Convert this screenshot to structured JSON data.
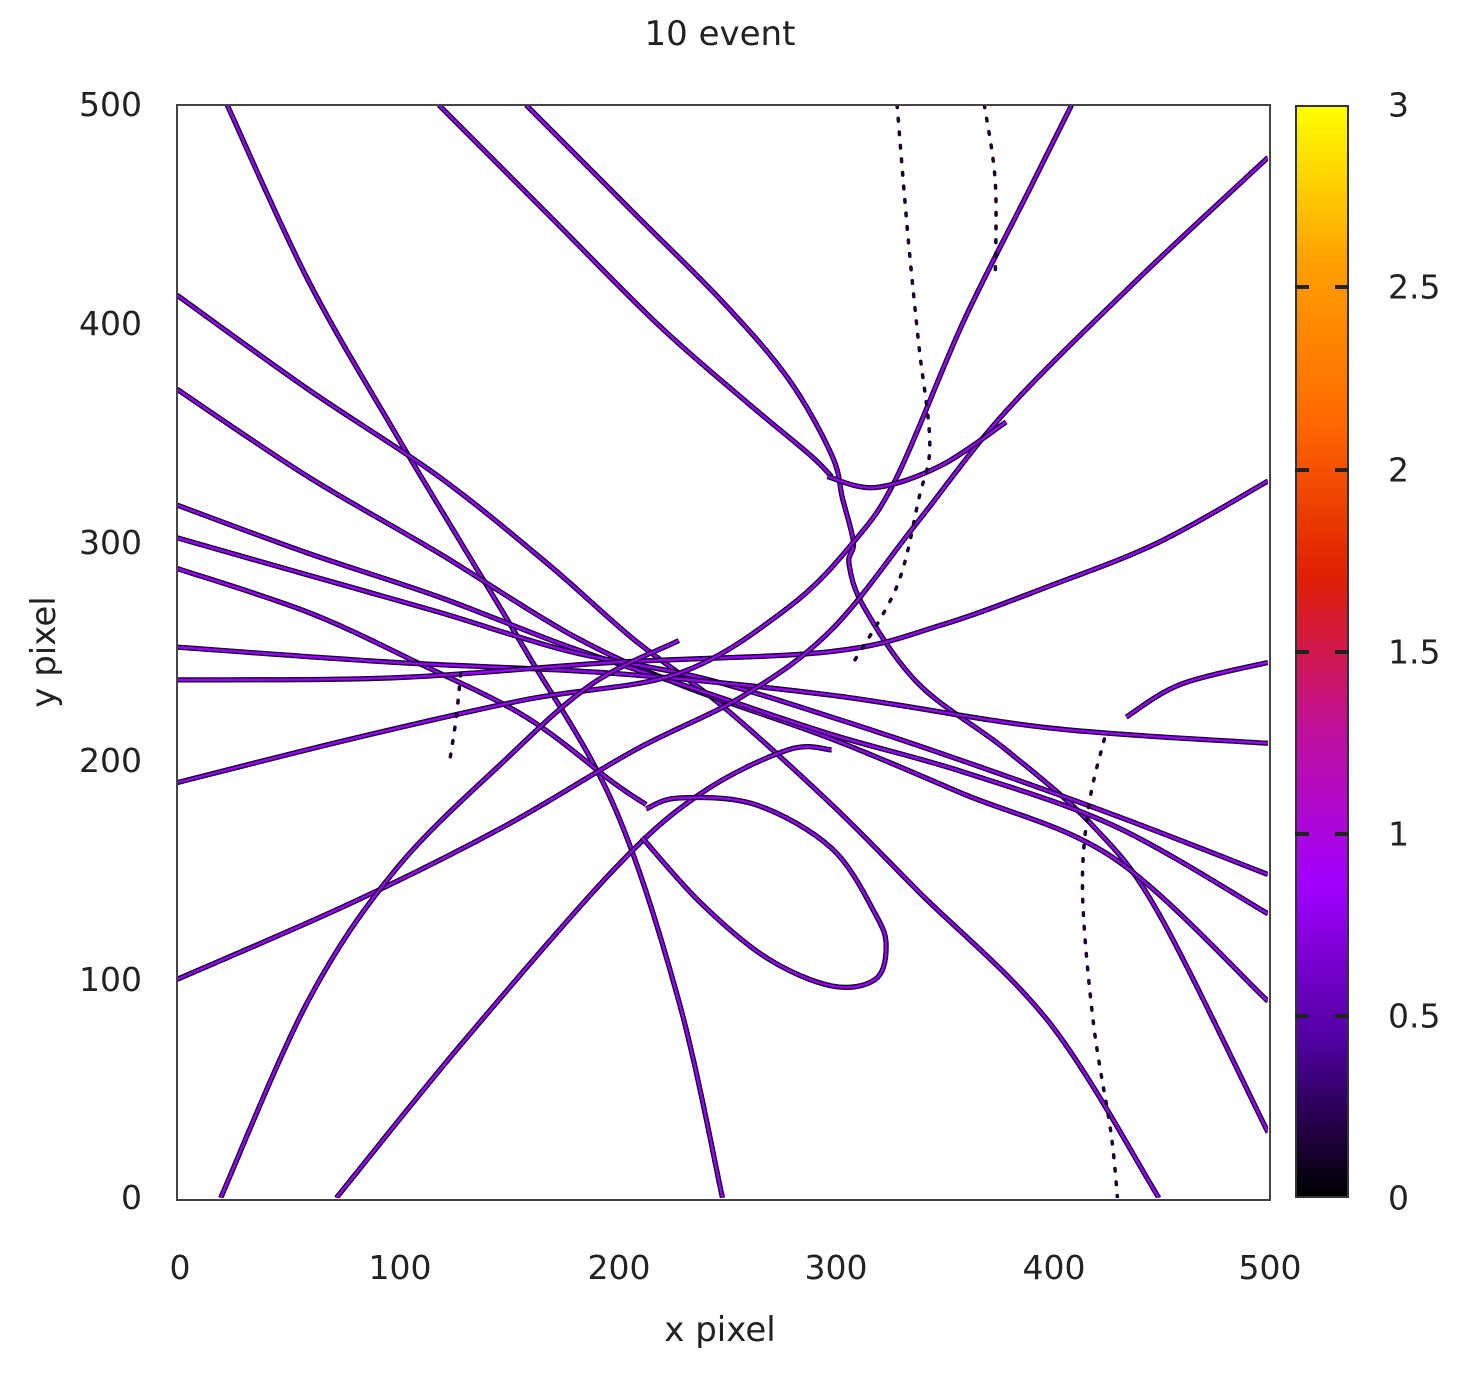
{
  "chart_data": {
    "type": "scatter",
    "title": "10 event",
    "xlabel": "x pixel",
    "ylabel": "y pixel",
    "xlim": [
      0,
      500
    ],
    "ylim": [
      0,
      500
    ],
    "x_ticks": [
      "0",
      "100",
      "200",
      "300",
      "400",
      "500"
    ],
    "y_ticks": [
      "0",
      "100",
      "200",
      "300",
      "400",
      "500"
    ],
    "grid": false,
    "colorbar": {
      "range": [
        0,
        3
      ],
      "ticks": [
        "0",
        "0.5",
        "1",
        "1.5",
        "2",
        "2.5",
        "3"
      ],
      "palette": [
        "#000000",
        "#5000a0",
        "#a000ff",
        "#c0109a",
        "#e02000",
        "#ff6a00",
        "#ffa000",
        "#ffff00"
      ]
    },
    "description": "Track image of particle event: hits rendered as pixel intensities (mostly ~0.6-1.0, purple) along straight and curved trajectories",
    "tracks": [
      {
        "id": "t1",
        "style": "solid",
        "points": [
          [
            23,
            500
          ],
          [
            60,
            420
          ],
          [
            100,
            350
          ],
          [
            130,
            300
          ],
          [
            160,
            250
          ],
          [
            200,
            180
          ],
          [
            230,
            90
          ],
          [
            250,
            0
          ]
        ]
      },
      {
        "id": "t2",
        "style": "solid",
        "points": [
          [
            120,
            500
          ],
          [
            170,
            450
          ],
          [
            220,
            400
          ],
          [
            260,
            365
          ],
          [
            290,
            340
          ],
          [
            300,
            330
          ]
        ]
      },
      {
        "id": "t3",
        "style": "solid",
        "points": [
          [
            160,
            500
          ],
          [
            210,
            450
          ],
          [
            250,
            410
          ],
          [
            280,
            375
          ],
          [
            300,
            340
          ],
          [
            305,
            320
          ],
          [
            310,
            300
          ],
          [
            308,
            290
          ],
          [
            315,
            270
          ],
          [
            340,
            235
          ],
          [
            380,
            205
          ],
          [
            420,
            170
          ],
          [
            450,
            130
          ],
          [
            500,
            30
          ]
        ]
      },
      {
        "id": "t4",
        "style": "solid",
        "points": [
          [
            0,
            413
          ],
          [
            60,
            370
          ],
          [
            120,
            330
          ],
          [
            170,
            290
          ],
          [
            210,
            255
          ],
          [
            250,
            225
          ],
          [
            300,
            180
          ],
          [
            340,
            140
          ],
          [
            400,
            80
          ],
          [
            450,
            0
          ]
        ]
      },
      {
        "id": "t5",
        "style": "solid",
        "points": [
          [
            0,
            370
          ],
          [
            60,
            330
          ],
          [
            120,
            295
          ],
          [
            180,
            258
          ],
          [
            230,
            235
          ],
          [
            300,
            210
          ],
          [
            360,
            185
          ],
          [
            430,
            155
          ],
          [
            500,
            90
          ]
        ]
      },
      {
        "id": "t6",
        "style": "solid",
        "points": [
          [
            0,
            317
          ],
          [
            60,
            295
          ],
          [
            120,
            275
          ],
          [
            180,
            252
          ],
          [
            240,
            232
          ],
          [
            300,
            212
          ],
          [
            360,
            195
          ],
          [
            430,
            170
          ],
          [
            500,
            130
          ]
        ]
      },
      {
        "id": "t7",
        "style": "solid",
        "points": [
          [
            0,
            302
          ],
          [
            60,
            285
          ],
          [
            120,
            268
          ],
          [
            180,
            250
          ],
          [
            240,
            238
          ],
          [
            300,
            220
          ],
          [
            360,
            200
          ],
          [
            430,
            175
          ],
          [
            500,
            148
          ]
        ]
      },
      {
        "id": "t8",
        "style": "solid",
        "points": [
          [
            0,
            288
          ],
          [
            60,
            268
          ],
          [
            110,
            245
          ],
          [
            160,
            220
          ],
          [
            200,
            190
          ],
          [
            215,
            180
          ]
        ]
      },
      {
        "id": "t9",
        "style": "solid",
        "points": [
          [
            0,
            252
          ],
          [
            100,
            245
          ],
          [
            200,
            240
          ],
          [
            300,
            230
          ],
          [
            400,
            215
          ],
          [
            500,
            208
          ]
        ]
      },
      {
        "id": "t10",
        "style": "solid",
        "points": [
          [
            0,
            237
          ],
          [
            100,
            238
          ],
          [
            200,
            245
          ],
          [
            300,
            250
          ],
          [
            350,
            262
          ],
          [
            400,
            280
          ],
          [
            450,
            300
          ],
          [
            500,
            328
          ]
        ]
      },
      {
        "id": "t11",
        "style": "solid",
        "points": [
          [
            0,
            190
          ],
          [
            80,
            210
          ],
          [
            160,
            228
          ],
          [
            230,
            240
          ],
          [
            280,
            270
          ],
          [
            310,
            300
          ],
          [
            330,
            330
          ],
          [
            360,
            400
          ],
          [
            390,
            460
          ],
          [
            410,
            500
          ]
        ]
      },
      {
        "id": "t12",
        "style": "solid",
        "points": [
          [
            0,
            100
          ],
          [
            80,
            135
          ],
          [
            150,
            170
          ],
          [
            210,
            205
          ],
          [
            260,
            230
          ],
          [
            300,
            260
          ],
          [
            340,
            310
          ],
          [
            380,
            360
          ],
          [
            440,
            420
          ],
          [
            500,
            476
          ]
        ]
      },
      {
        "id": "t13",
        "style": "solid",
        "points": [
          [
            20,
            0
          ],
          [
            60,
            90
          ],
          [
            100,
            150
          ],
          [
            150,
            200
          ],
          [
            190,
            235
          ],
          [
            230,
            255
          ]
        ]
      },
      {
        "id": "t14",
        "style": "solid",
        "points": [
          [
            73,
            0
          ],
          [
            130,
            70
          ],
          [
            200,
            150
          ],
          [
            240,
            185
          ],
          [
            280,
            205
          ],
          [
            300,
            205
          ]
        ]
      },
      {
        "id": "t15",
        "style": "solid",
        "points": [
          [
            298,
            330
          ],
          [
            320,
            325
          ],
          [
            350,
            335
          ],
          [
            380,
            355
          ]
        ]
      },
      {
        "id": "t16",
        "style": "solid",
        "points": [
          [
            213,
            165
          ],
          [
            240,
            135
          ],
          [
            270,
            110
          ],
          [
            300,
            97
          ],
          [
            320,
            100
          ],
          [
            325,
            115
          ],
          [
            320,
            130
          ],
          [
            300,
            160
          ],
          [
            265,
            180
          ],
          [
            230,
            183
          ],
          [
            215,
            178
          ]
        ]
      },
      {
        "id": "t17",
        "style": "solid",
        "points": [
          [
            435,
            220
          ],
          [
            460,
            235
          ],
          [
            500,
            245
          ]
        ]
      },
      {
        "id": "t18",
        "style": "dotted",
        "points": [
          [
            330,
            500
          ],
          [
            335,
            440
          ],
          [
            340,
            390
          ],
          [
            345,
            345
          ],
          [
            340,
            320
          ],
          [
            330,
            280
          ],
          [
            310,
            245
          ]
        ]
      },
      {
        "id": "t19",
        "style": "dotted",
        "points": [
          [
            370,
            500
          ],
          [
            375,
            465
          ],
          [
            375,
            420
          ]
        ]
      },
      {
        "id": "t20",
        "style": "dotted",
        "points": [
          [
            130,
            240
          ],
          [
            128,
            220
          ],
          [
            125,
            200
          ]
        ]
      },
      {
        "id": "t21",
        "style": "dotted",
        "points": [
          [
            425,
            210
          ],
          [
            418,
            180
          ],
          [
            415,
            140
          ],
          [
            420,
            80
          ],
          [
            428,
            30
          ],
          [
            431,
            0
          ]
        ]
      }
    ]
  },
  "colors": {
    "track_core": "#9a00ff",
    "track_edge": "#1a0030",
    "axis": "#444444",
    "text": "#222222"
  }
}
